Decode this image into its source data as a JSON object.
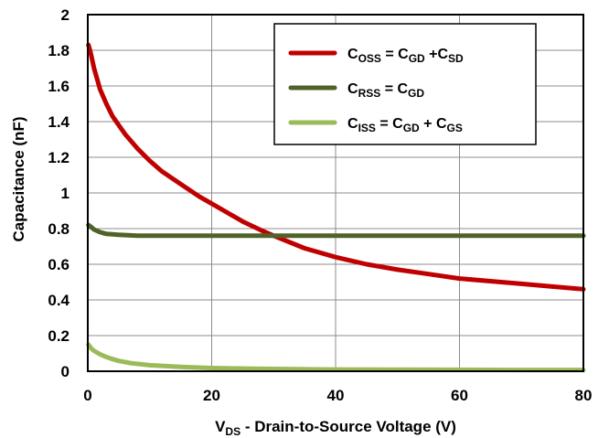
{
  "chart_data": {
    "type": "line",
    "title": "",
    "xlabel": {
      "main": "V",
      "sub": "DS",
      "rest": " - Drain-to-Source Voltage (V)"
    },
    "ylabel": "Capacitance (nF)",
    "xlim": [
      0,
      80
    ],
    "ylim": [
      0,
      2
    ],
    "x_ticks": [
      "0",
      "20",
      "40",
      "60",
      "80"
    ],
    "y_ticks": [
      "0",
      "0.2",
      "0.4",
      "0.6",
      "0.8",
      "1",
      "1.2",
      "1.4",
      "1.6",
      "1.8",
      "2"
    ],
    "grid": true,
    "legend_position": "top-right",
    "series": [
      {
        "name": "COSS = CGD +CSD",
        "legend": [
          {
            "t": "C"
          },
          {
            "t": "OSS",
            "sub": true
          },
          {
            "t": " = C"
          },
          {
            "t": "GD",
            "sub": true
          },
          {
            "t": " +C"
          },
          {
            "t": "SD",
            "sub": true
          }
        ],
        "color": "#c00000",
        "x": [
          0.1,
          0.5,
          1,
          2,
          3,
          4,
          5,
          6,
          8,
          10,
          12,
          15,
          18,
          20,
          22,
          25,
          28,
          30,
          35,
          40,
          45,
          50,
          55,
          60,
          65,
          70,
          75,
          80
        ],
        "y": [
          1.83,
          1.78,
          1.7,
          1.58,
          1.5,
          1.43,
          1.38,
          1.33,
          1.25,
          1.18,
          1.12,
          1.05,
          0.98,
          0.94,
          0.9,
          0.84,
          0.79,
          0.76,
          0.69,
          0.64,
          0.6,
          0.57,
          0.545,
          0.52,
          0.505,
          0.49,
          0.475,
          0.46
        ]
      },
      {
        "name": "CRSS = CGD",
        "legend": [
          {
            "t": "C"
          },
          {
            "t": "RSS",
            "sub": true
          },
          {
            "t": " = C"
          },
          {
            "t": "GD",
            "sub": true
          }
        ],
        "color": "#4f6228",
        "x": [
          0.1,
          0.5,
          1,
          2,
          3,
          5,
          8,
          12,
          20,
          30,
          40,
          50,
          60,
          70,
          80
        ],
        "y": [
          0.82,
          0.81,
          0.795,
          0.78,
          0.77,
          0.765,
          0.76,
          0.76,
          0.76,
          0.76,
          0.76,
          0.76,
          0.76,
          0.76,
          0.76
        ]
      },
      {
        "name": "CISS = CGD + CGS",
        "legend": [
          {
            "t": "C"
          },
          {
            "t": "ISS",
            "sub": true
          },
          {
            "t": " = C"
          },
          {
            "t": "GD",
            "sub": true
          },
          {
            "t": " + C"
          },
          {
            "t": "GS",
            "sub": true
          }
        ],
        "color": "#9bbb59",
        "x": [
          0.1,
          0.5,
          1,
          2,
          3,
          4,
          5,
          7,
          10,
          15,
          20,
          30,
          40,
          50,
          60,
          70,
          80
        ],
        "y": [
          0.15,
          0.13,
          0.115,
          0.095,
          0.08,
          0.068,
          0.058,
          0.045,
          0.034,
          0.024,
          0.018,
          0.013,
          0.01,
          0.009,
          0.008,
          0.007,
          0.007
        ]
      }
    ]
  }
}
